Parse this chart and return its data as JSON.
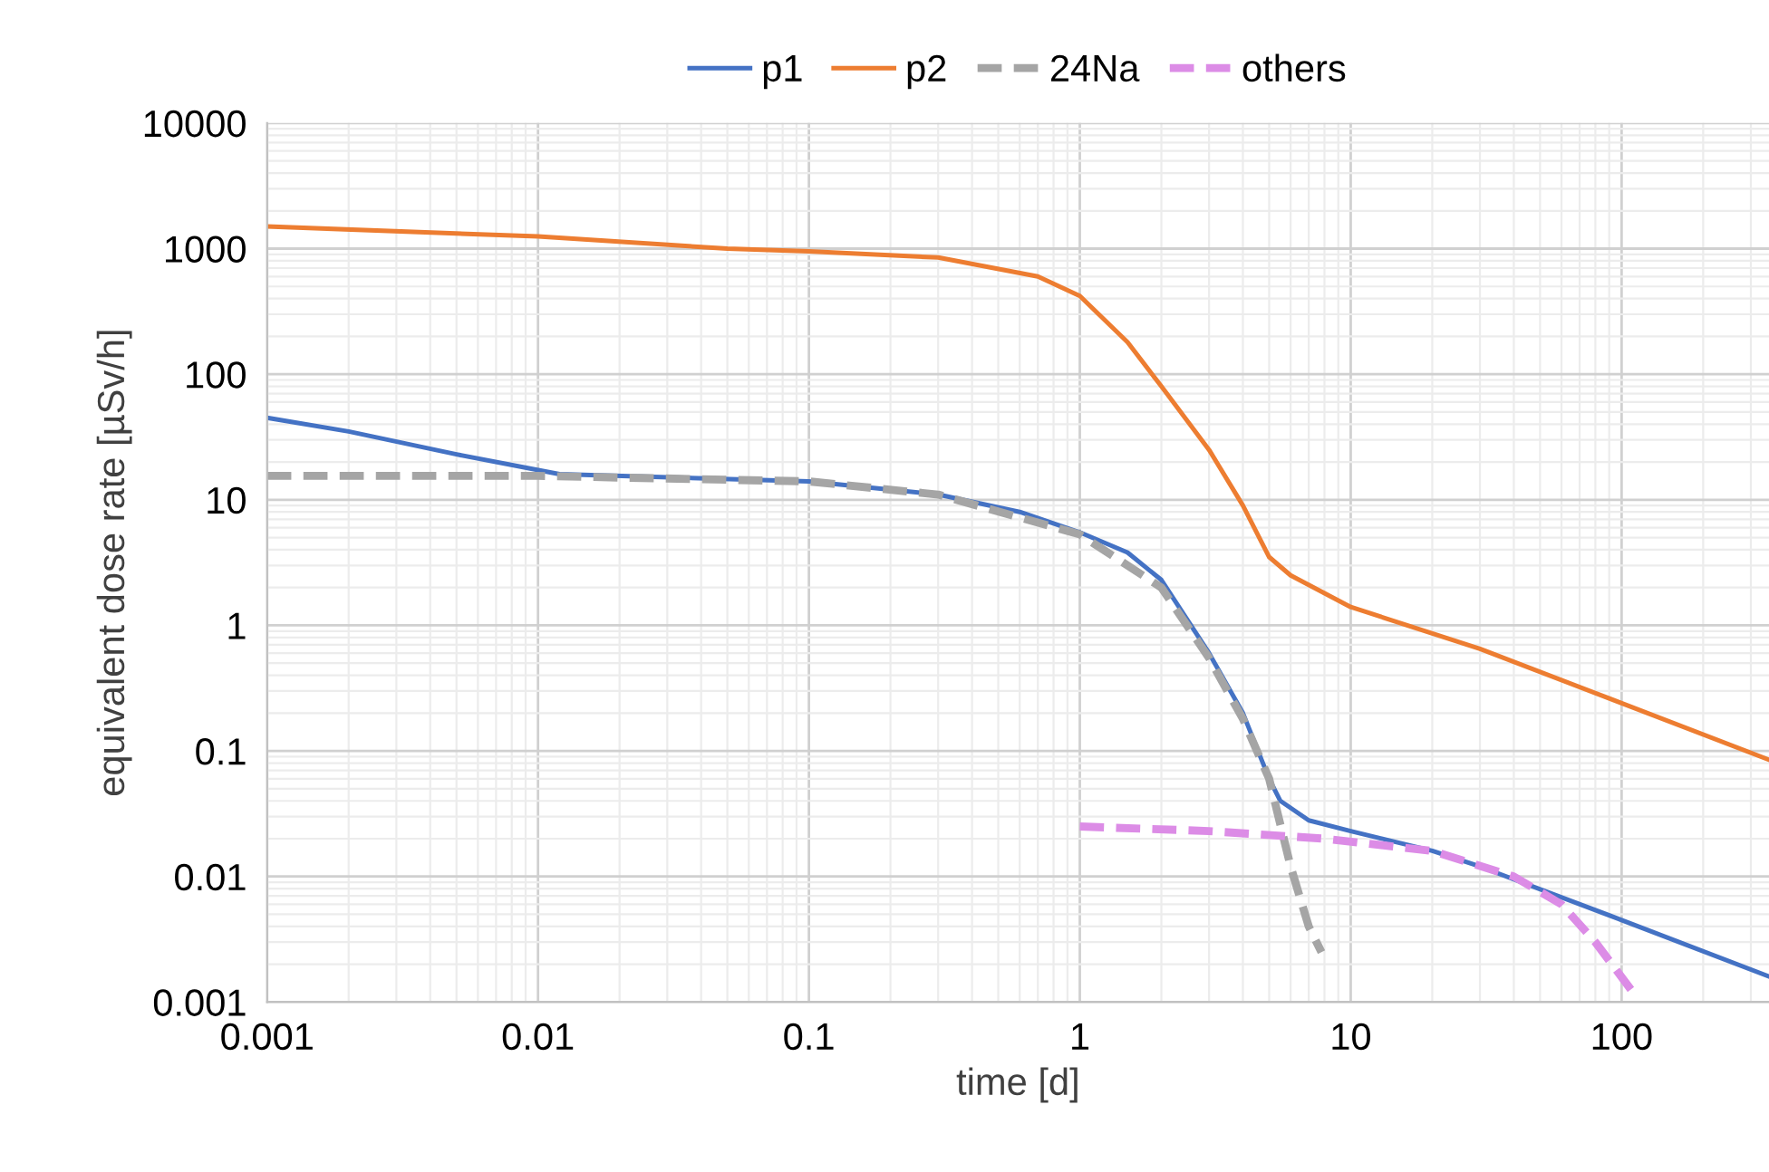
{
  "chart_data": {
    "type": "line",
    "xlabel": "time [d]",
    "ylabel": "equivalent dose rate [µSv/h]",
    "log": "xy",
    "grid": true,
    "legend": "top",
    "marker": "none",
    "xlim": [
      0.001,
      350
    ],
    "xticks": [
      0.001,
      0.01,
      0.1,
      1,
      10,
      100
    ],
    "ylim": [
      0.001,
      10000
    ],
    "yticks": [
      0.001,
      0.01,
      0.1,
      1,
      10,
      100,
      1000,
      10000
    ],
    "series": [
      {
        "name": "p1",
        "color": "#4472c4",
        "line_style": "solid",
        "x": [
          0.001,
          0.002,
          0.005,
          0.012,
          0.1,
          0.3,
          0.6,
          1,
          1.5,
          2,
          3,
          4,
          5,
          5.5,
          7,
          10,
          20,
          30,
          100,
          350
        ],
        "values": [
          45,
          35,
          23,
          16,
          14,
          11,
          8,
          5.5,
          3.8,
          2.3,
          0.6,
          0.2,
          0.06,
          0.04,
          0.028,
          0.023,
          0.016,
          0.012,
          0.0045,
          0.0016
        ]
      },
      {
        "name": "p2",
        "color": "#ed7d31",
        "line_style": "solid",
        "x": [
          0.001,
          0.01,
          0.05,
          0.1,
          0.3,
          0.7,
          1,
          1.5,
          2,
          3,
          4,
          5,
          6,
          10,
          30,
          100,
          350
        ],
        "values": [
          1500,
          1250,
          1000,
          950,
          850,
          600,
          420,
          180,
          80,
          25,
          9,
          3.5,
          2.5,
          1.4,
          0.65,
          0.24,
          0.085
        ]
      },
      {
        "name": "24Na",
        "color": "#a5a5a5",
        "line_style": "dashed",
        "x": [
          0.001,
          0.01,
          0.1,
          0.3,
          1,
          2,
          3,
          4,
          5,
          6,
          7,
          7.8
        ],
        "values": [
          15.5,
          15.5,
          14,
          11,
          5.3,
          2,
          0.55,
          0.18,
          0.06,
          0.012,
          0.004,
          0.0025
        ]
      },
      {
        "name": "others",
        "color": "#dc8ce6",
        "line_style": "dashed",
        "x": [
          1,
          3,
          8,
          20,
          40,
          60,
          80,
          110
        ],
        "values": [
          0.025,
          0.023,
          0.02,
          0.016,
          0.01,
          0.006,
          0.003,
          0.0012
        ]
      }
    ]
  }
}
